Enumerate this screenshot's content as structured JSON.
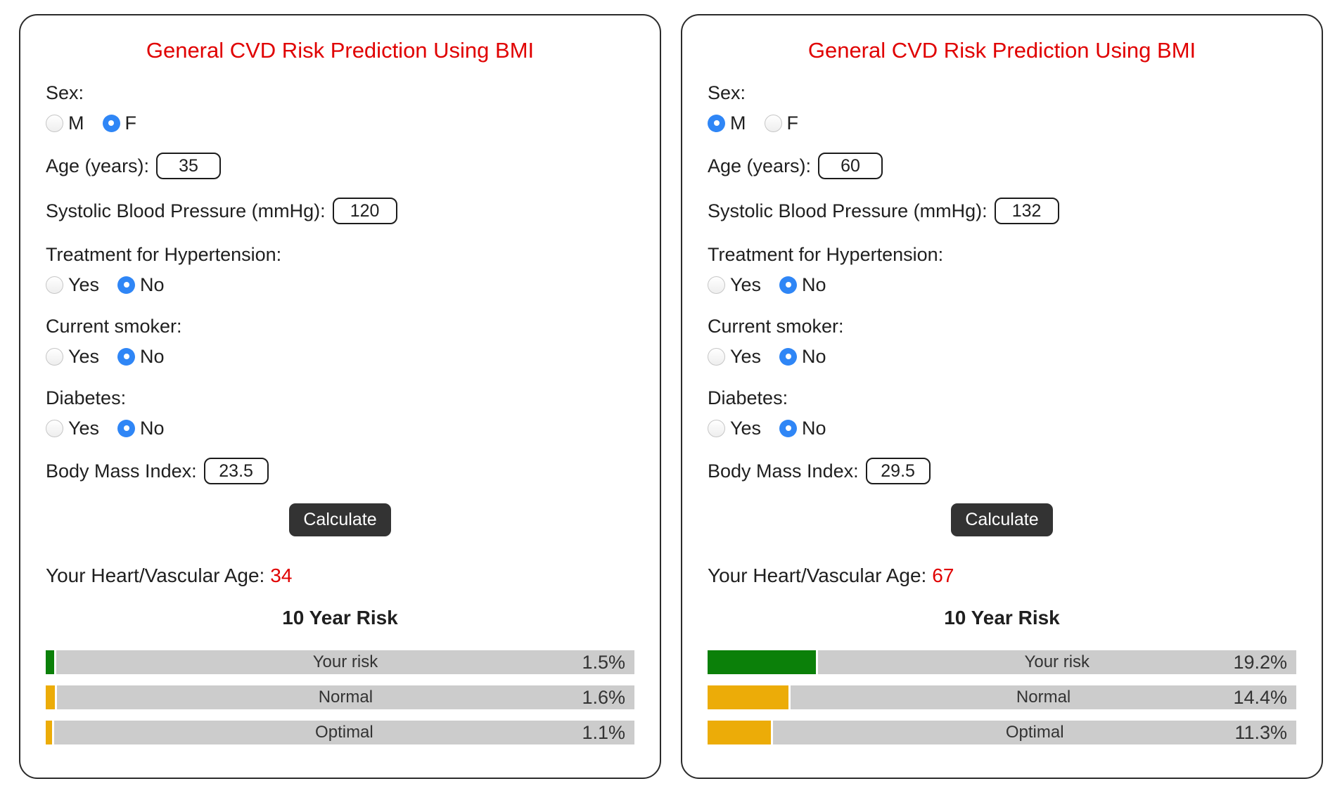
{
  "colors": {
    "title_red": "#e00000",
    "radio_blue": "#2f86f6",
    "button_dark": "#333333",
    "track_gray": "#cccccc",
    "risk_green": "#0b8009",
    "risk_orange": "#ecac08"
  },
  "panels": [
    {
      "title": "General CVD Risk Prediction Using BMI",
      "sex": {
        "label": "Sex:",
        "m": "M",
        "f": "F",
        "m_selected": false,
        "f_selected": true
      },
      "age": {
        "label": "Age (years):",
        "value": "35"
      },
      "sbp": {
        "label": "Systolic Blood Pressure (mmHg):",
        "value": "120"
      },
      "htn": {
        "label": "Treatment for Hypertension:",
        "yes": "Yes",
        "no": "No",
        "yes_selected": false,
        "no_selected": true
      },
      "smoker": {
        "label": "Current smoker:",
        "yes": "Yes",
        "no": "No",
        "yes_selected": false,
        "no_selected": true
      },
      "diabetes": {
        "label": "Diabetes:",
        "yes": "Yes",
        "no": "No",
        "yes_selected": false,
        "no_selected": true
      },
      "bmi": {
        "label": "Body Mass Index:",
        "value": "23.5"
      },
      "calculate_label": "Calculate",
      "heart_age": {
        "label": "Your Heart/Vascular Age:",
        "value": "34"
      },
      "risk": {
        "title": "10 Year Risk",
        "bars": [
          {
            "label": "Your risk",
            "pct": 1.5,
            "display": "1.5%",
            "color": "#0b8009"
          },
          {
            "label": "Normal",
            "pct": 1.6,
            "display": "1.6%",
            "color": "#ecac08"
          },
          {
            "label": "Optimal",
            "pct": 1.1,
            "display": "1.1%",
            "color": "#ecac08"
          }
        ]
      }
    },
    {
      "title": "General CVD Risk Prediction Using BMI",
      "sex": {
        "label": "Sex:",
        "m": "M",
        "f": "F",
        "m_selected": true,
        "f_selected": false
      },
      "age": {
        "label": "Age (years):",
        "value": "60"
      },
      "sbp": {
        "label": "Systolic Blood Pressure (mmHg):",
        "value": "132"
      },
      "htn": {
        "label": "Treatment for Hypertension:",
        "yes": "Yes",
        "no": "No",
        "yes_selected": false,
        "no_selected": true
      },
      "smoker": {
        "label": "Current smoker:",
        "yes": "Yes",
        "no": "No",
        "yes_selected": false,
        "no_selected": true
      },
      "diabetes": {
        "label": "Diabetes:",
        "yes": "Yes",
        "no": "No",
        "yes_selected": false,
        "no_selected": true
      },
      "bmi": {
        "label": "Body Mass Index:",
        "value": "29.5"
      },
      "calculate_label": "Calculate",
      "heart_age": {
        "label": "Your Heart/Vascular Age:",
        "value": "67"
      },
      "risk": {
        "title": "10 Year Risk",
        "bars": [
          {
            "label": "Your risk",
            "pct": 19.2,
            "display": "19.2%",
            "color": "#0b8009"
          },
          {
            "label": "Normal",
            "pct": 14.4,
            "display": "14.4%",
            "color": "#ecac08"
          },
          {
            "label": "Optimal",
            "pct": 11.3,
            "display": "11.3%",
            "color": "#ecac08"
          }
        ]
      }
    }
  ]
}
